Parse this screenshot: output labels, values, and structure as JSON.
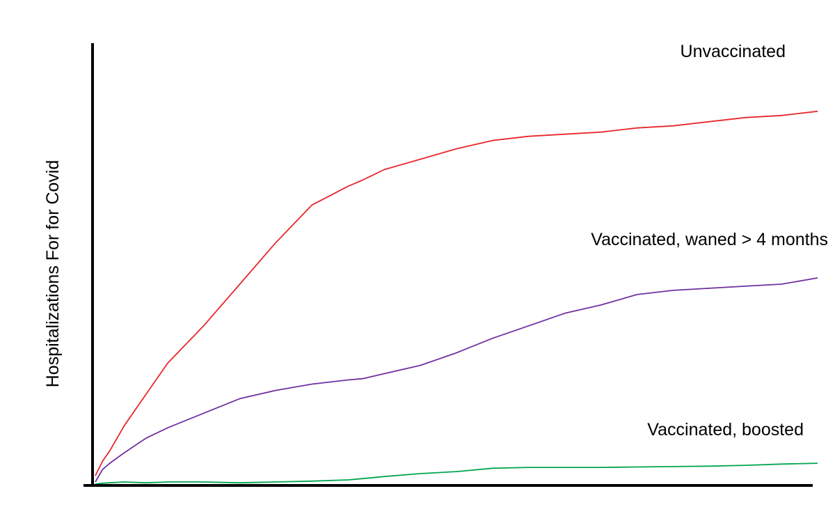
{
  "chart_data": {
    "type": "line",
    "title": "",
    "xlabel": "",
    "ylabel": "Hospitalizations For for Covid",
    "xlim": [
      0,
      100
    ],
    "ylim": [
      0,
      100
    ],
    "grid": false,
    "legend": "none",
    "x": [
      0,
      1,
      2,
      4,
      7,
      10,
      15,
      20,
      25,
      30,
      35,
      37,
      40,
      45,
      50,
      55,
      60,
      65,
      70,
      75,
      80,
      85,
      90,
      95,
      100
    ],
    "series": [
      {
        "name": "Unvaccinated",
        "color": "#e8272b",
        "values": [
          2,
          5.5,
          8,
          14,
          21.5,
          29,
          38,
          48,
          58,
          67,
          71.5,
          73,
          75.5,
          78,
          80.5,
          82.5,
          83.5,
          84,
          84.5,
          85.5,
          86,
          87,
          88,
          88.5,
          89.5
        ]
      },
      {
        "name": "Vaccinated, waned > 4 months",
        "color": "#7030a0",
        "values": [
          0.5,
          3.5,
          5,
          7.5,
          11,
          13.5,
          17,
          20.5,
          22.5,
          24,
          25,
          25.3,
          26.5,
          28.5,
          31.5,
          35,
          38,
          41,
          43,
          45.5,
          46.5,
          47,
          47.5,
          48,
          49.5
        ]
      },
      {
        "name": "Vaccinated, boosted",
        "color": "#00a650",
        "values": [
          0,
          0.2,
          0.3,
          0.5,
          0.3,
          0.5,
          0.5,
          0.3,
          0.5,
          0.7,
          1,
          1.3,
          1.8,
          2.5,
          3,
          3.8,
          4,
          4,
          4,
          4.1,
          4.2,
          4.3,
          4.5,
          4.8,
          5
        ]
      }
    ],
    "annotations": [
      {
        "series": "Unvaccinated",
        "text": "Unvaccinated"
      },
      {
        "series": "Vaccinated, waned > 4 months",
        "text": "Vaccinated, waned > 4 months"
      },
      {
        "series": "Vaccinated, boosted",
        "text": "Vaccinated, boosted"
      }
    ],
    "axis_color": "#000000"
  }
}
